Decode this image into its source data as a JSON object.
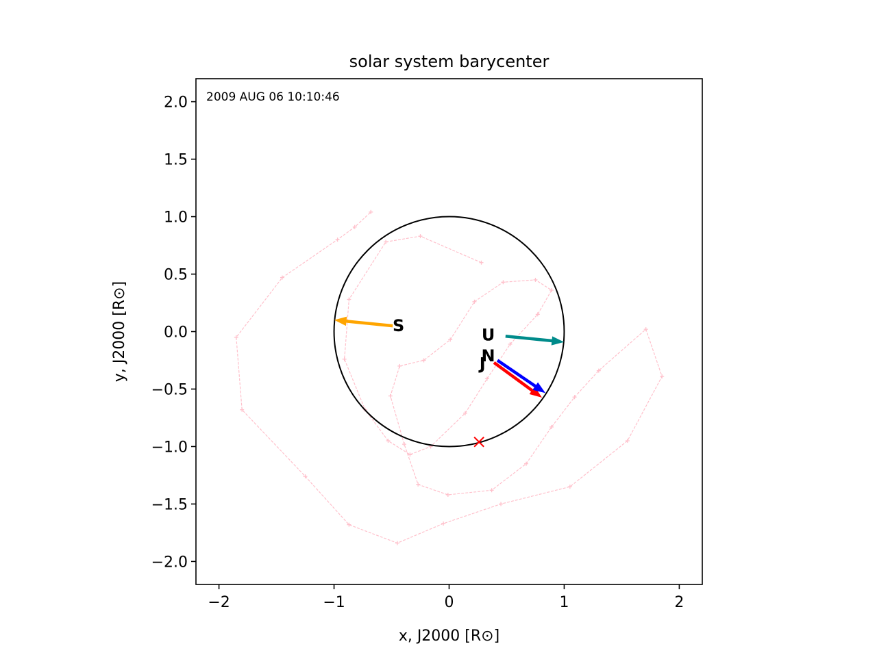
{
  "chart_data": {
    "type": "scatter",
    "title": "solar system barycenter",
    "xlabel": "x, J2000 [R⊙]",
    "ylabel": "y, J2000 [R⊙]",
    "xlim": [
      -2.2,
      2.2
    ],
    "ylim": [
      -2.2,
      2.2
    ],
    "xticks": [
      -2,
      -1,
      0,
      1,
      2
    ],
    "xtick_labels": [
      "−2",
      "−1",
      "0",
      "1",
      "2"
    ],
    "yticks": [
      2.0,
      1.5,
      1.0,
      0.5,
      0.0,
      -0.5,
      -1.0,
      -1.5,
      -2.0
    ],
    "ytick_labels": [
      "2.0",
      "1.5",
      "1.0",
      "0.5",
      "0.0",
      "−0.5",
      "−1.0",
      "−1.5",
      "−2.0"
    ],
    "grid": false,
    "annotation": "2009 AUG 06 10:10:46",
    "sun_circle": {
      "center": [
        0,
        0
      ],
      "radius": 1.0,
      "color": "#000000"
    },
    "barycenter_path": {
      "color": "#ffc0cb",
      "style": "dashed",
      "x": [
        0.28,
        -0.25,
        -0.55,
        -0.87,
        -0.91,
        -0.73,
        -0.53,
        -0.34,
        -0.16,
        0.14,
        0.33,
        0.53,
        0.77,
        0.89,
        0.75,
        0.47,
        0.22,
        0.01,
        -0.22,
        -0.43,
        -0.51,
        -0.39,
        -0.27,
        -0.01,
        0.37,
        0.67,
        0.89,
        1.09,
        1.3,
        1.71,
        1.85,
        1.55,
        1.05,
        0.45,
        -0.05,
        -0.45,
        -0.87,
        -1.25,
        -1.8,
        -1.85,
        -1.45,
        -0.97,
        -0.82,
        -0.68
      ],
      "y": [
        0.6,
        0.83,
        0.78,
        0.28,
        -0.24,
        -0.68,
        -0.95,
        -1.07,
        -1.0,
        -0.71,
        -0.41,
        -0.11,
        0.15,
        0.36,
        0.45,
        0.43,
        0.26,
        -0.07,
        -0.25,
        -0.3,
        -0.56,
        -0.98,
        -1.33,
        -1.42,
        -1.38,
        -1.15,
        -0.83,
        -0.57,
        -0.34,
        0.02,
        -0.39,
        -0.95,
        -1.35,
        -1.5,
        -1.67,
        -1.84,
        -1.68,
        -1.26,
        -0.68,
        -0.05,
        0.47,
        0.8,
        0.91,
        1.04
      ]
    },
    "current_position": {
      "x": 0.26,
      "y": -0.96,
      "marker": "x",
      "color": "#ff0000"
    },
    "planets": [
      {
        "name": "J",
        "color": "#ff0000",
        "x": 0.39,
        "y": -0.27,
        "dx": 0.41,
        "dy": -0.3,
        "label_x": 0.29,
        "label_y": -0.28
      },
      {
        "name": "S",
        "color": "#ffa500",
        "x": -0.49,
        "y": 0.05,
        "dx": -0.5,
        "dy": 0.05,
        "label_x": -0.44,
        "label_y": 0.05
      },
      {
        "name": "U",
        "color": "#008b8b",
        "x": 0.49,
        "y": -0.04,
        "dx": 0.5,
        "dy": -0.05,
        "label_x": 0.34,
        "label_y": -0.03
      },
      {
        "name": "N",
        "color": "#0000ff",
        "x": 0.42,
        "y": -0.25,
        "dx": 0.41,
        "dy": -0.28,
        "label_x": 0.34,
        "label_y": -0.21
      }
    ]
  }
}
